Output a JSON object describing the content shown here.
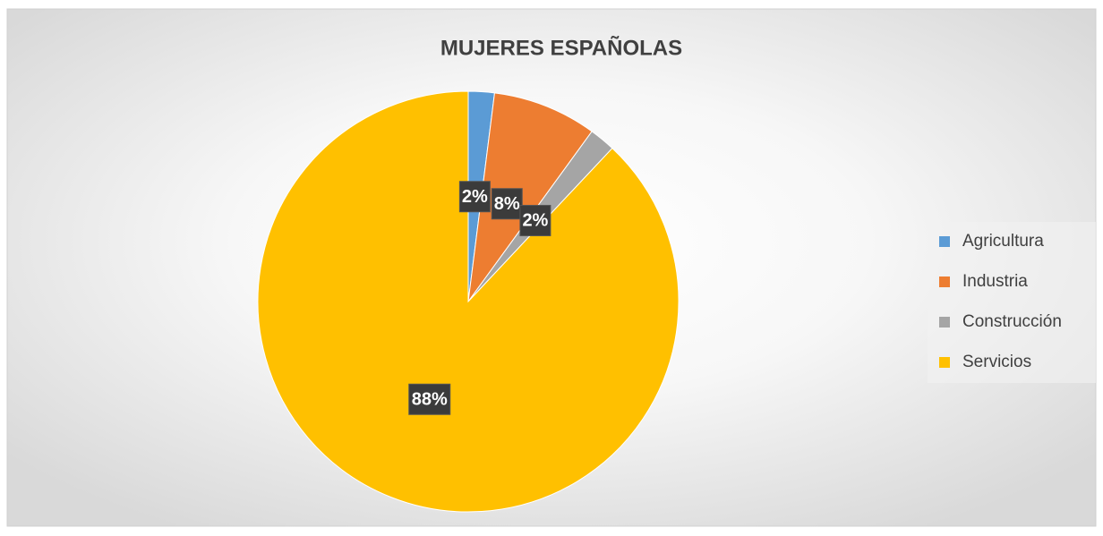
{
  "chart_data": {
    "type": "pie",
    "title": "MUJERES ESPAÑOLAS",
    "categories": [
      "Agricultura",
      "Industria",
      "Construcción",
      "Servicios"
    ],
    "values": [
      2,
      8,
      2,
      88
    ],
    "value_labels": [
      "2%",
      "8%",
      "2%",
      "88%"
    ],
    "colors": [
      "#5b9bd5",
      "#ed7d31",
      "#a5a5a5",
      "#ffc000"
    ],
    "legend": "right"
  }
}
